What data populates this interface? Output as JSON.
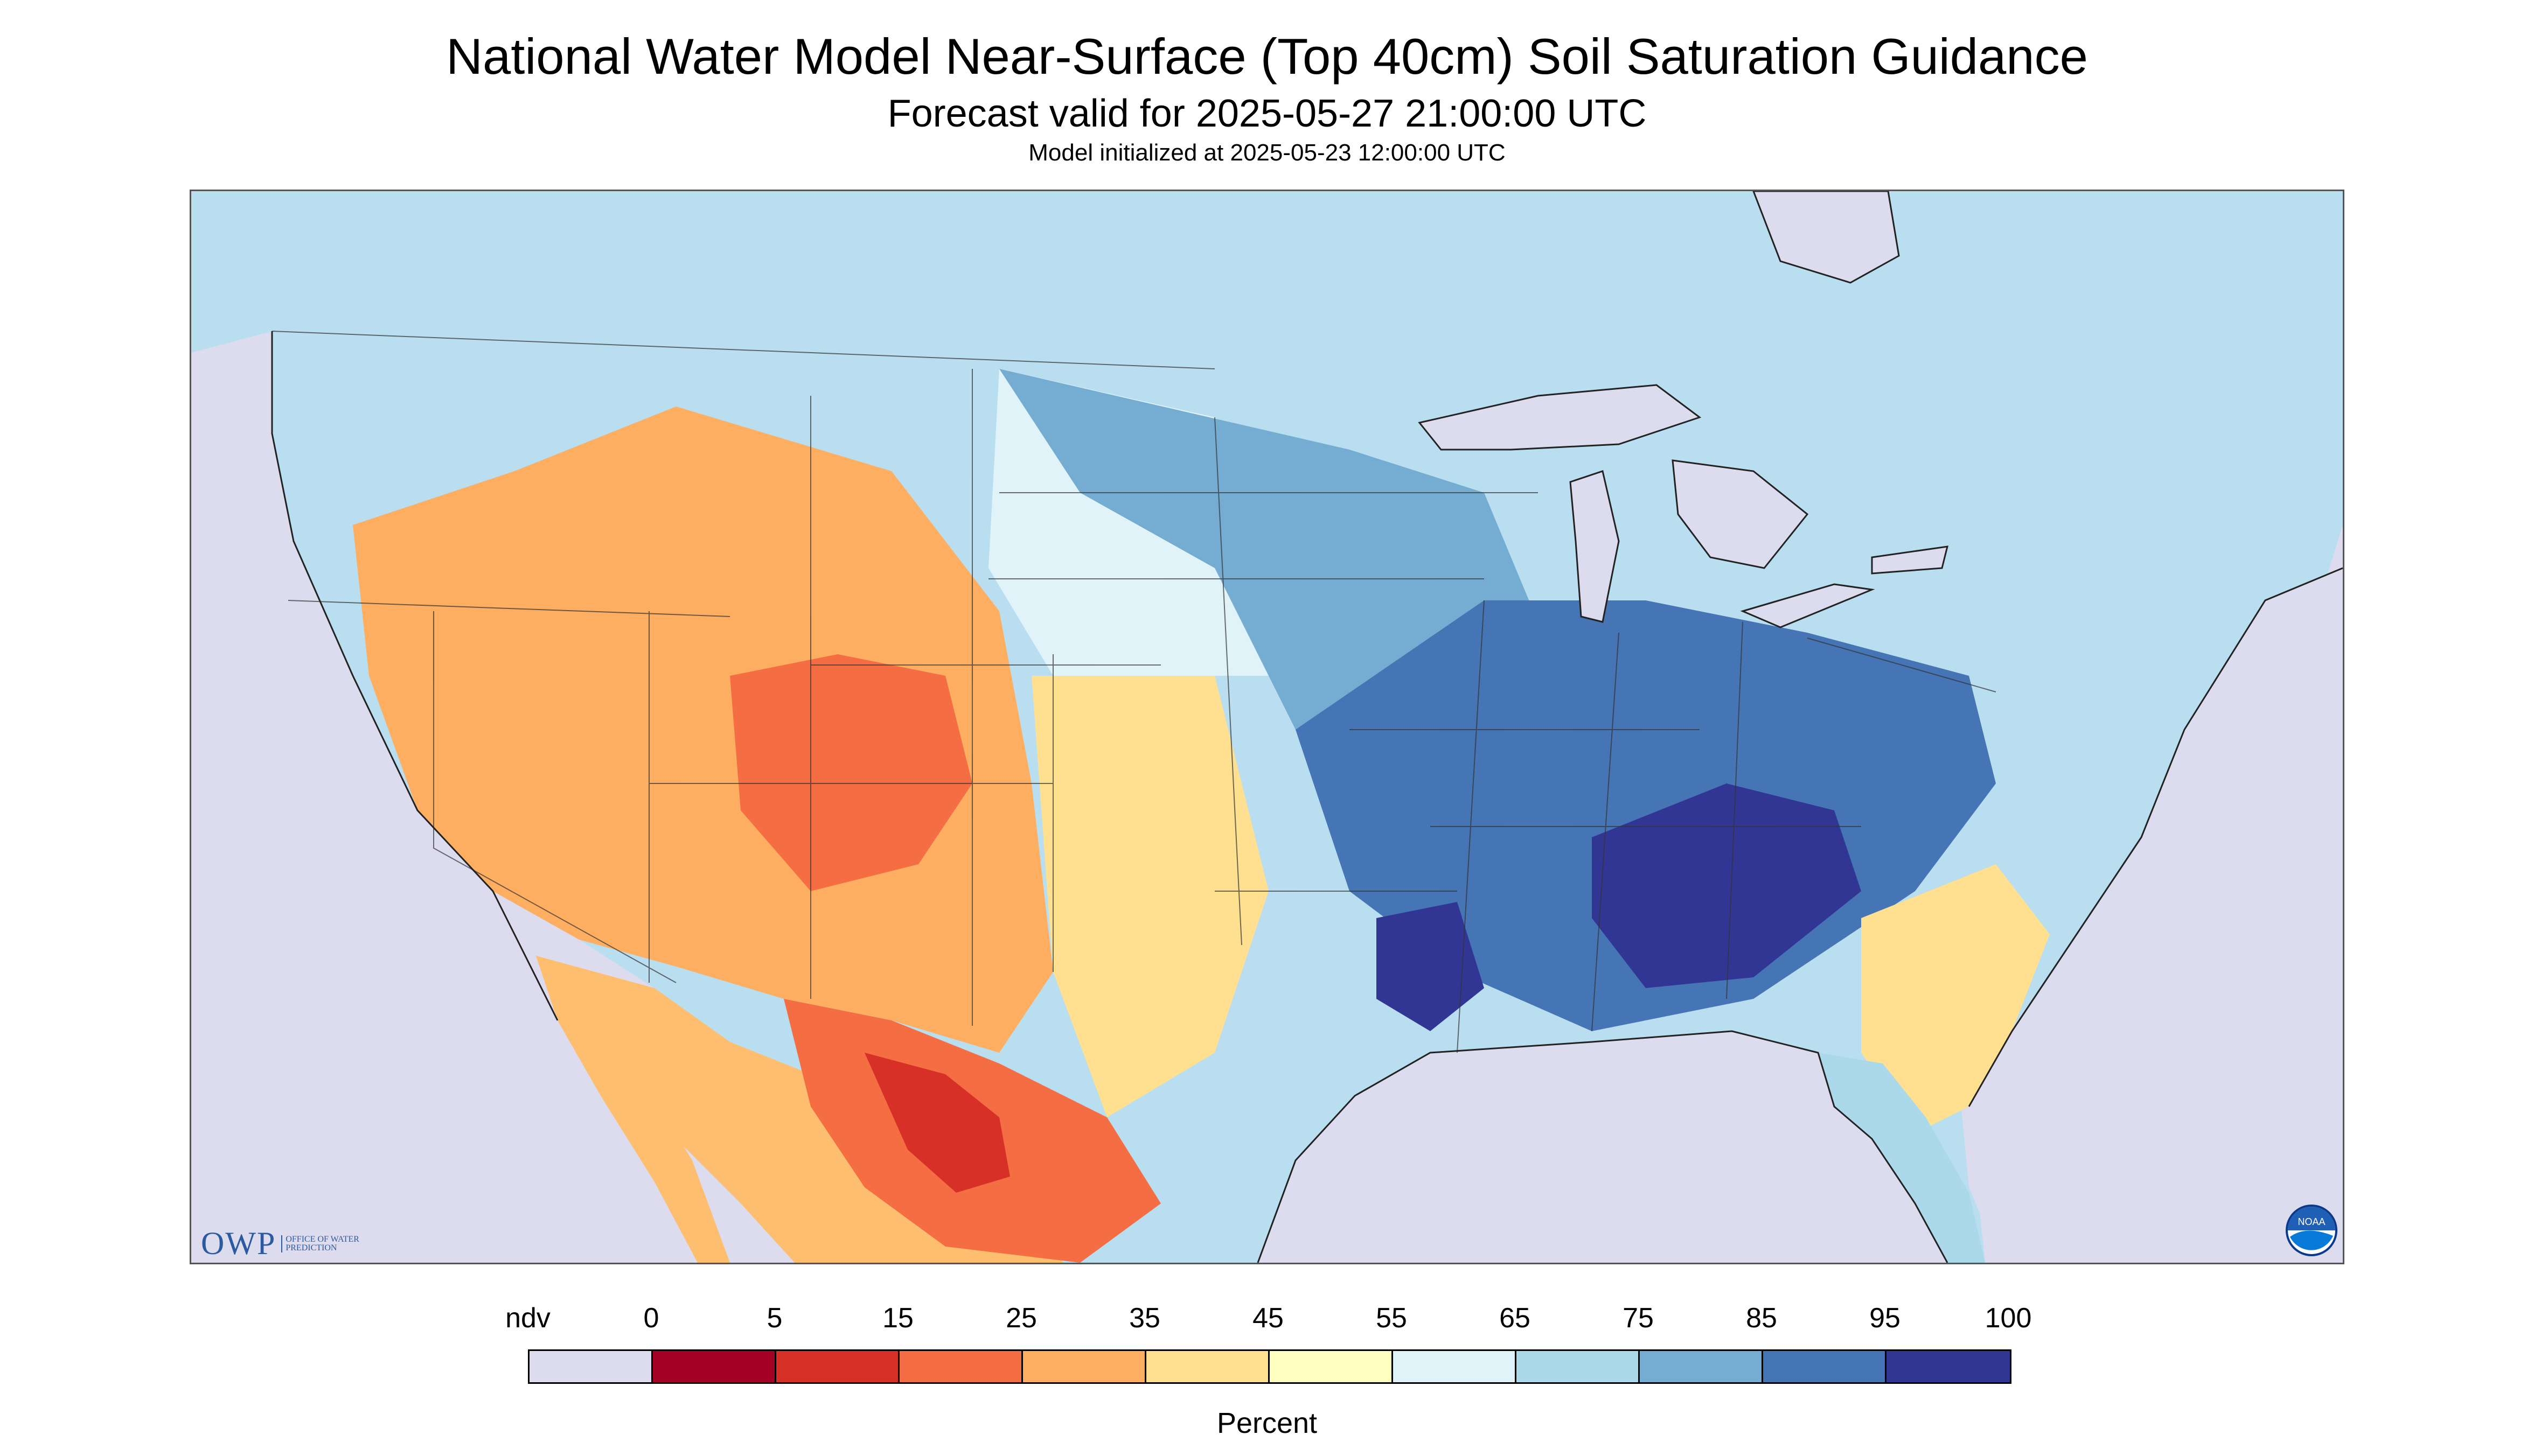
{
  "header": {
    "title": "National Water Model Near-Surface (Top 40cm) Soil Saturation Guidance",
    "subtitle": "Forecast valid for 2025-05-27 21:00:00 UTC",
    "init_line": "Model initialized at 2025-05-23 12:00:00 UTC"
  },
  "map": {
    "region": "Contiguous United States",
    "projection": "conic",
    "no_data_color": "#dcdcee",
    "water_color": "#dcdcee",
    "dominant_regions": [
      {
        "region": "Mississippi Valley / Ohio Valley",
        "class": "85-100"
      },
      {
        "region": "Northern Plains",
        "class": "75-85"
      },
      {
        "region": "Pacific Northwest",
        "class": "65-75"
      },
      {
        "region": "Desert Southwest / Texas / Mexico",
        "class": "5-35"
      }
    ]
  },
  "logos": {
    "owp_mark": "OWP",
    "owp_text": "OFFICE OF WATER PREDICTION",
    "noaa_text": "NOAA"
  },
  "legend": {
    "labels": [
      "ndv",
      "0",
      "5",
      "15",
      "25",
      "35",
      "45",
      "55",
      "65",
      "75",
      "85",
      "95",
      "100"
    ],
    "colors": [
      "#dcdcee",
      "#a50026",
      "#d73027",
      "#f46d43",
      "#fdae61",
      "#fee090",
      "#ffffbf",
      "#e0f3f8",
      "#abd9e9",
      "#74add1",
      "#4575b4",
      "#313695"
    ],
    "unit": "Percent"
  }
}
